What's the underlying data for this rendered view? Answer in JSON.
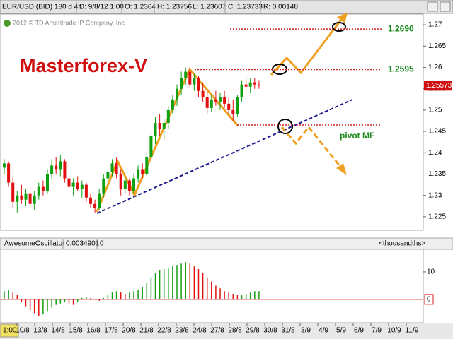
{
  "chart_data": {
    "type": "candlestick",
    "title": "Masterforex-V",
    "copyright": "2012 © TD Ameritrade IP Company, Inc.",
    "header": [
      "EUR/USD (BID) 180 d 4h",
      "D: 9/8/12 1:00",
      "O: 1.2364",
      "H: 1.23756",
      "L: 1.23607",
      "C: 1.23733",
      "R: 0.00148"
    ],
    "ylim": [
      1.222,
      1.2725
    ],
    "yticks": [
      1.27,
      1.265,
      1.26,
      1.255,
      1.25,
      1.245,
      1.24,
      1.235,
      1.23,
      1.225
    ],
    "last_price": {
      "value": 1.25573,
      "label": "1.25573"
    },
    "levels": [
      {
        "value": 1.269,
        "label": "1.2690"
      },
      {
        "value": 1.2595,
        "label": "1.2595"
      },
      {
        "value": 1.2465,
        "label": "pivot MF"
      }
    ],
    "ohlc": [
      [
        1.2365,
        1.2385,
        1.235,
        1.2375
      ],
      [
        1.2375,
        1.238,
        1.232,
        1.233
      ],
      [
        1.233,
        1.2345,
        1.227,
        1.2285
      ],
      [
        1.2285,
        1.231,
        1.226,
        1.23
      ],
      [
        1.23,
        1.2325,
        1.228,
        1.229
      ],
      [
        1.229,
        1.2315,
        1.2275,
        1.2305
      ],
      [
        1.2305,
        1.232,
        1.227,
        1.228
      ],
      [
        1.228,
        1.231,
        1.2265,
        1.23
      ],
      [
        1.23,
        1.233,
        1.229,
        1.232
      ],
      [
        1.232,
        1.2335,
        1.23,
        1.231
      ],
      [
        1.231,
        1.236,
        1.2305,
        1.235
      ],
      [
        1.235,
        1.2385,
        1.234,
        1.237
      ],
      [
        1.237,
        1.239,
        1.235,
        1.236
      ],
      [
        1.236,
        1.2395,
        1.2345,
        1.238
      ],
      [
        1.238,
        1.2385,
        1.233,
        1.234
      ],
      [
        1.234,
        1.2355,
        1.231,
        1.232
      ],
      [
        1.232,
        1.234,
        1.23,
        1.233
      ],
      [
        1.233,
        1.2345,
        1.231,
        1.2315
      ],
      [
        1.2315,
        1.2335,
        1.2295,
        1.2325
      ],
      [
        1.2325,
        1.233,
        1.2285,
        1.2295
      ],
      [
        1.2295,
        1.2305,
        1.227,
        1.228
      ],
      [
        1.228,
        1.229,
        1.226,
        1.227
      ],
      [
        1.227,
        1.2315,
        1.2265,
        1.2305
      ],
      [
        1.2305,
        1.235,
        1.2295,
        1.234
      ],
      [
        1.234,
        1.2365,
        1.232,
        1.2355
      ],
      [
        1.2355,
        1.2385,
        1.2345,
        1.2375
      ],
      [
        1.2375,
        1.239,
        1.234,
        1.235
      ],
      [
        1.235,
        1.236,
        1.23,
        1.2315
      ],
      [
        1.2315,
        1.2345,
        1.2305,
        1.2335
      ],
      [
        1.2335,
        1.234,
        1.23,
        1.231
      ],
      [
        1.231,
        1.235,
        1.2305,
        1.234
      ],
      [
        1.234,
        1.237,
        1.233,
        1.236
      ],
      [
        1.236,
        1.2375,
        1.234,
        1.235
      ],
      [
        1.235,
        1.24,
        1.2345,
        1.239
      ],
      [
        1.239,
        1.245,
        1.2385,
        1.244
      ],
      [
        1.244,
        1.2485,
        1.242,
        1.247
      ],
      [
        1.247,
        1.249,
        1.244,
        1.2455
      ],
      [
        1.2455,
        1.248,
        1.243,
        1.247
      ],
      [
        1.247,
        1.251,
        1.2455,
        1.25
      ],
      [
        1.25,
        1.2535,
        1.249,
        1.2525
      ],
      [
        1.2525,
        1.256,
        1.251,
        1.255
      ],
      [
        1.255,
        1.259,
        1.2535,
        1.2575
      ],
      [
        1.2575,
        1.26,
        1.256,
        1.259
      ],
      [
        1.259,
        1.26,
        1.255,
        1.256
      ],
      [
        1.256,
        1.2585,
        1.2545,
        1.2575
      ],
      [
        1.2575,
        1.258,
        1.253,
        1.2545
      ],
      [
        1.2545,
        1.2565,
        1.252,
        1.253
      ],
      [
        1.253,
        1.2545,
        1.249,
        1.2505
      ],
      [
        1.2505,
        1.2535,
        1.2495,
        1.2525
      ],
      [
        1.2525,
        1.2545,
        1.251,
        1.252
      ],
      [
        1.252,
        1.254,
        1.25,
        1.253
      ],
      [
        1.253,
        1.2545,
        1.2505,
        1.2515
      ],
      [
        1.2515,
        1.253,
        1.249,
        1.25
      ],
      [
        1.25,
        1.2525,
        1.2475,
        1.249
      ],
      [
        1.249,
        1.2535,
        1.2485,
        1.253
      ],
      [
        1.253,
        1.257,
        1.252,
        1.256
      ],
      [
        1.256,
        1.258,
        1.2545,
        1.2555
      ],
      [
        1.2555,
        1.2575,
        1.254,
        1.2565
      ],
      [
        1.2565,
        1.2575,
        1.255,
        1.256
      ],
      [
        1.256,
        1.257,
        1.255,
        1.25573
      ]
    ],
    "x_labels": [
      "10/8",
      "13/8",
      "14/8",
      "15/8",
      "16/8",
      "17/8",
      "20/8",
      "21/8",
      "22/8",
      "23/8",
      "24/8",
      "27/8",
      "28/8",
      "29/8",
      "30/8",
      "31/8",
      "3/9",
      "4/9",
      "5/9",
      "6/9",
      "7/9",
      "10/9",
      "11/9"
    ],
    "time_label": "1:00",
    "oscillator": {
      "name": "AwesomeOscillator",
      "header": [
        "0.0034901",
        "0"
      ],
      "unit": "<thousandths>",
      "ylim": [
        -8,
        17.7
      ],
      "yticks": [
        10,
        0
      ],
      "values": [
        3,
        3.5,
        2.5,
        1.5,
        -1,
        -2.5,
        -4,
        -5,
        -6,
        -5.5,
        -4.5,
        -3,
        -2,
        -1.5,
        -1,
        -1.5,
        -2,
        -1,
        0.5,
        1,
        0.5,
        0,
        -0.5,
        0.5,
        1.5,
        2.5,
        3,
        2.5,
        2,
        2.5,
        3,
        3.5,
        4.5,
        6,
        8,
        9.5,
        10.5,
        11,
        11.5,
        12,
        12.5,
        13,
        13.5,
        13,
        12,
        11,
        9.5,
        8,
        6.5,
        5,
        4,
        3,
        2.5,
        2,
        1.5,
        1.5,
        2,
        2.5,
        3,
        3
      ]
    }
  }
}
